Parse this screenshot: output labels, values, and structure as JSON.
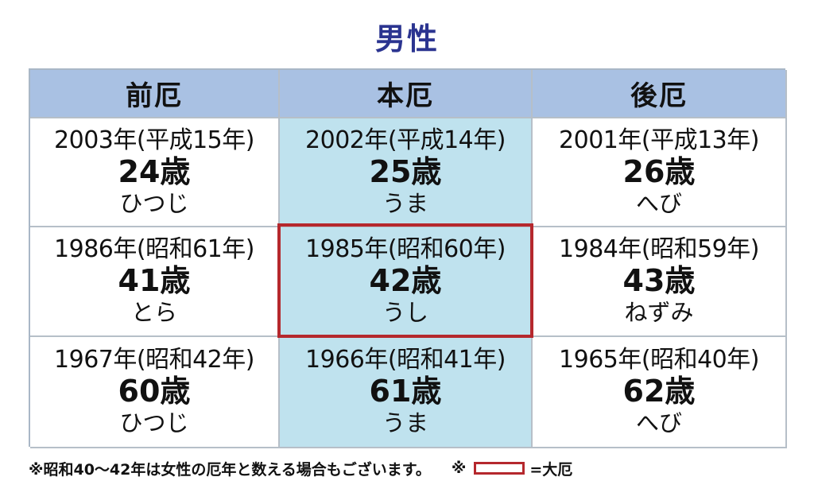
{
  "title": "男性",
  "headers": [
    "前厄",
    "本厄",
    "後厄"
  ],
  "rows": [
    [
      {
        "year": "2003年(平成15年)",
        "age": "24歳",
        "zodiac": "ひつじ"
      },
      {
        "year": "2002年(平成14年)",
        "age": "25歳",
        "zodiac": "うま"
      },
      {
        "year": "2001年(平成13年)",
        "age": "26歳",
        "zodiac": "へび"
      }
    ],
    [
      {
        "year": "1986年(昭和61年)",
        "age": "41歳",
        "zodiac": "とら"
      },
      {
        "year": "1985年(昭和60年)",
        "age": "42歳",
        "zodiac": "うし"
      },
      {
        "year": "1984年(昭和59年)",
        "age": "43歳",
        "zodiac": "ねずみ"
      }
    ],
    [
      {
        "year": "1967年(昭和42年)",
        "age": "60歳",
        "zodiac": "ひつじ"
      },
      {
        "year": "1966年(昭和41年)",
        "age": "61歳",
        "zodiac": "うま"
      },
      {
        "year": "1965年(昭和40年)",
        "age": "62歳",
        "zodiac": "へび"
      }
    ]
  ],
  "footer": {
    "note": "※昭和40〜42年は女性の厄年と数える場合もございます。",
    "mark": "※",
    "legend_label": "=大厄"
  },
  "colors": {
    "title": "#2b3490",
    "header_bg": "#a9c1e3",
    "main_column_bg": "#bfe2ee",
    "highlight_border": "#b5282d"
  }
}
